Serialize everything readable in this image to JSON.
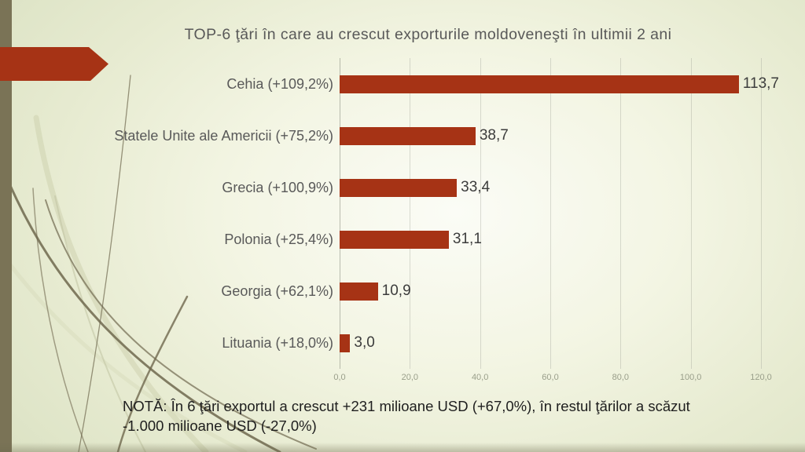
{
  "slide": {
    "title": "TOP-6 ţări în care au crescut exporturile moldoveneşti în ultimii 2 ani",
    "note_line1": "NOTĂ: În 6 ţări exportul a crescut +231 milioane USD (+67,0%), în restul ţărilor a scăzut",
    "note_line2": "-1.000 milioane USD (-27,0%)"
  },
  "colors": {
    "accent_red": "#a63315",
    "olive_band": "#7a7356",
    "label_gray": "#595959",
    "value_gray": "#3c3c3c",
    "tick_gray": "#999e8a",
    "curve_olive": "#6f684e"
  },
  "chart_data": {
    "type": "bar",
    "orientation": "horizontal",
    "title": "TOP-6 ţări în care au crescut exporturile moldoveneşti în ultimii 2 ani",
    "categories": [
      "Cehia (+109,2%)",
      "Statele Unite ale Americii (+75,2%)",
      "Grecia (+100,9%)",
      "Polonia (+25,4%)",
      "Georgia (+62,1%)",
      "Lituania (+18,0%)"
    ],
    "values": [
      113.7,
      38.7,
      33.4,
      31.1,
      10.9,
      3.0
    ],
    "value_labels": [
      "113,7",
      "38,7",
      "33,4",
      "31,1",
      "10,9",
      "3,0"
    ],
    "xlabel": "",
    "ylabel": "",
    "xlim": [
      0,
      120
    ],
    "x_tick_values": [
      0,
      20,
      40,
      60,
      80,
      100,
      120
    ],
    "x_tick_labels": [
      "0,0",
      "20,0",
      "40,0",
      "60,0",
      "80,0",
      "100,0",
      "120,0"
    ],
    "grid": "vertical",
    "legend": "none",
    "bar_color": "#a63315"
  }
}
